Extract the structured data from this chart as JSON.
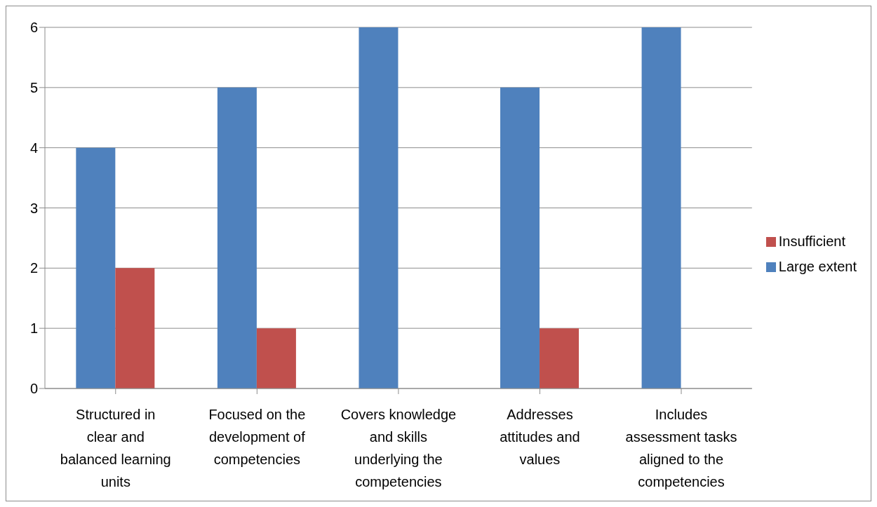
{
  "chart_data": {
    "type": "bar",
    "categories": [
      "Structured in clear and balanced learning units",
      "Focused on the development of competencies",
      "Covers knowledge and skills underlying the competencies",
      "Addresses attitudes and values",
      "Includes assessment tasks aligned to the competencies"
    ],
    "series": [
      {
        "name": "Large extent",
        "color": "#4f81bd",
        "values": [
          4,
          5,
          6,
          5,
          6
        ]
      },
      {
        "name": "Insufficient",
        "color": "#c0504d",
        "values": [
          2,
          1,
          0,
          1,
          0
        ]
      }
    ],
    "ylim": [
      0,
      6
    ],
    "yticks": [
      0,
      1,
      2,
      3,
      4,
      5,
      6
    ],
    "grid": "y",
    "legend": "right"
  }
}
